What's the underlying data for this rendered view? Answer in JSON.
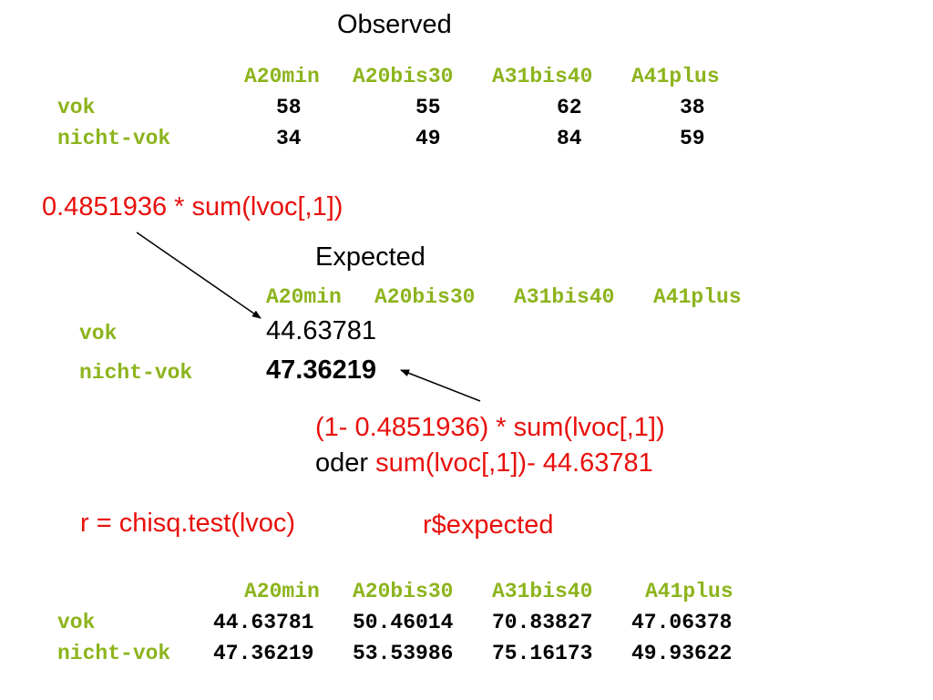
{
  "observed": {
    "title": "Observed",
    "headers": [
      "A20min",
      "A20bis30",
      "A31bis40",
      "A41plus"
    ],
    "rows": [
      {
        "label": "vok",
        "values": [
          "58",
          "55",
          "62",
          "38"
        ]
      },
      {
        "label": "nicht-vok",
        "values": [
          "34",
          "49",
          "84",
          "59"
        ]
      }
    ]
  },
  "formula1": "0.4851936 * sum(lvoc[,1])",
  "expected": {
    "title": "Expected",
    "headers": [
      "A20min",
      "A20bis30",
      "A31bis40",
      "A41plus"
    ],
    "rows": [
      {
        "label": "vok",
        "value": "44.63781"
      },
      {
        "label": "nicht-vok",
        "value": "47.36219"
      }
    ]
  },
  "formula2": {
    "line1": "(1- 0.4851936) * sum(lvoc[,1])",
    "oder": "oder",
    "line2": "sum(lvoc[,1])- 44.63781"
  },
  "code": {
    "chisq": "r = chisq.test(lvoc)",
    "expected_call": "r$expected"
  },
  "result": {
    "headers": [
      "A20min",
      "A20bis30",
      "A31bis40",
      "A41plus"
    ],
    "rows": [
      {
        "label": "vok",
        "values": [
          "44.63781",
          "50.46014",
          "70.83827",
          "47.06378"
        ]
      },
      {
        "label": "nicht-vok",
        "values": [
          "47.36219",
          "53.53986",
          "75.16173",
          "49.93622"
        ]
      }
    ]
  },
  "colors": {
    "label_green": "#8cb41c",
    "formula_red": "#e8100c",
    "text_black": "#000000"
  }
}
